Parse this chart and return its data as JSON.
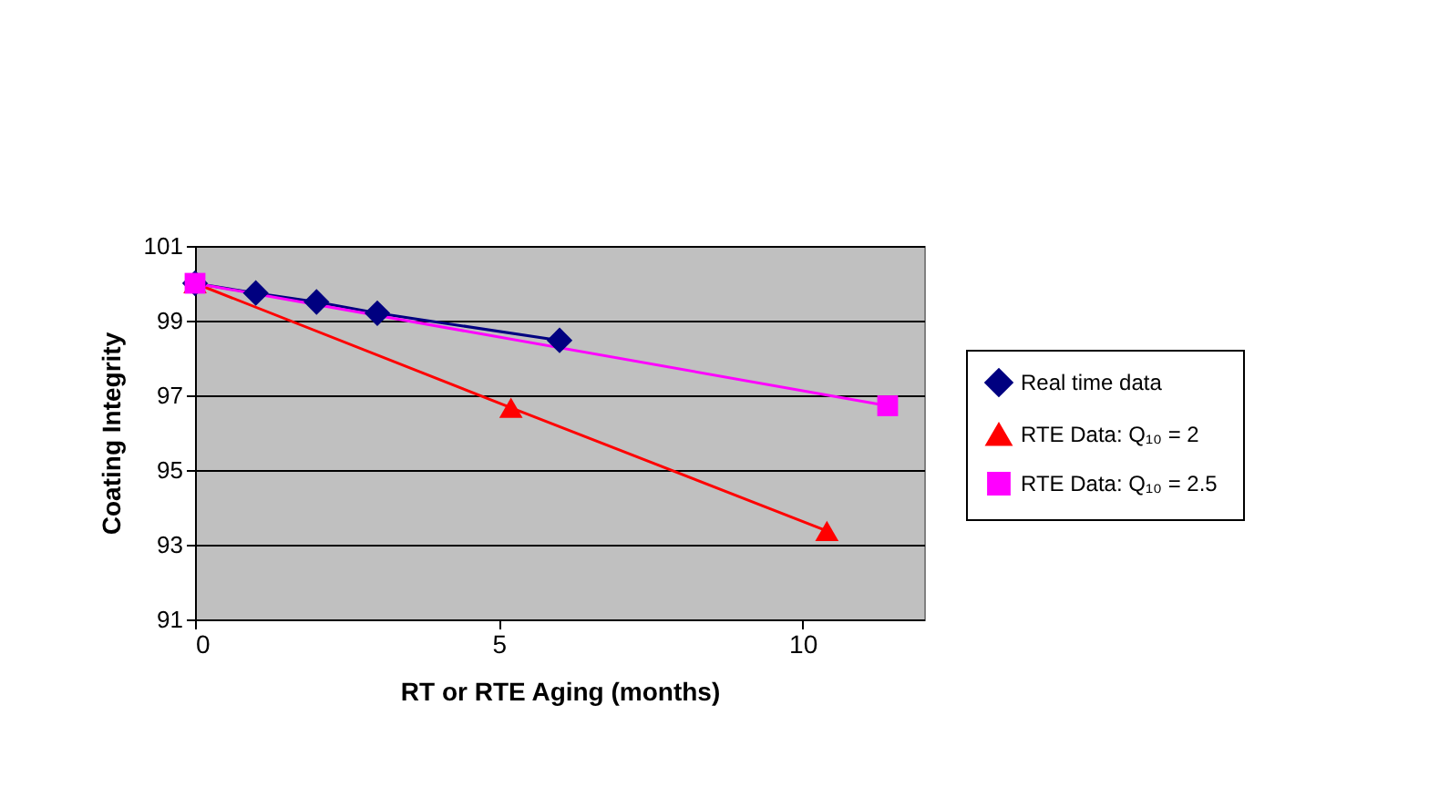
{
  "chart_data": {
    "type": "line",
    "xlabel": "RT or RTE Aging (months)",
    "ylabel": "Coating Integrity",
    "xlim": [
      0,
      12
    ],
    "xticks": [
      0,
      5,
      10
    ],
    "ylim": [
      91,
      101
    ],
    "yticks": [
      91,
      93,
      95,
      97,
      99,
      101
    ],
    "grid": "y",
    "legend": "right",
    "series": [
      {
        "name": "Real time data",
        "color": "#000080",
        "marker": "diamond",
        "x": [
          0,
          1,
          2,
          3,
          6
        ],
        "values": [
          100,
          99.74,
          99.5,
          99.2,
          98.47
        ]
      },
      {
        "name": "RTE Data:  Q₁₀ = 2",
        "color": "#ff0000",
        "marker": "triangle",
        "x": [
          0,
          5.2,
          10.4
        ],
        "values": [
          100,
          96.67,
          93.37
        ]
      },
      {
        "name": "RTE Data:  Q₁₀ = 2.5",
        "color": "#ff00ff",
        "marker": "square",
        "x": [
          0,
          11.4
        ],
        "values": [
          100,
          96.72
        ]
      }
    ]
  }
}
